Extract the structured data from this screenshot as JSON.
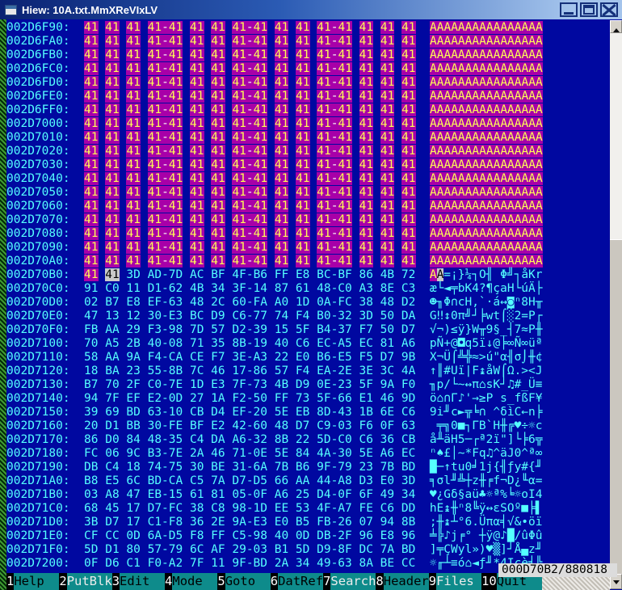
{
  "window": {
    "title": "Hiew: 10A.txt.MmXReVIxLV",
    "icons": {
      "app": "console-window-icon",
      "minimize": "minimize-icon",
      "maximize": "maximize-icon",
      "close": "close-icon"
    }
  },
  "status": {
    "offset_size": "000D70B2/880818"
  },
  "colors": {
    "background": "#0008A0",
    "text_cyan": "#55FFFF",
    "marked_bg": "#A800A8",
    "marked_text": "#FFFF55",
    "cursor_bg": "#C9C9C9",
    "cursor_text": "#000000",
    "fnbar_teal": "#0E8B8B",
    "titlebar_gradient": [
      "#0A2272",
      "#A4C4EC"
    ]
  },
  "hex_view": {
    "rows": [
      {
        "addr": "002D6F90:",
        "hex": "41 41 41 41-41 41 41 41-41 41 41 41-41 41 41 41",
        "ascii": "AAAAAAAAAAAAAAAA",
        "state": "marked"
      },
      {
        "addr": "002D6FA0:",
        "hex": "41 41 41 41-41 41 41 41-41 41 41 41-41 41 41 41",
        "ascii": "AAAAAAAAAAAAAAAA",
        "state": "marked"
      },
      {
        "addr": "002D6FB0:",
        "hex": "41 41 41 41-41 41 41 41-41 41 41 41-41 41 41 41",
        "ascii": "AAAAAAAAAAAAAAAA",
        "state": "marked"
      },
      {
        "addr": "002D6FC0:",
        "hex": "41 41 41 41-41 41 41 41-41 41 41 41-41 41 41 41",
        "ascii": "AAAAAAAAAAAAAAAA",
        "state": "marked"
      },
      {
        "addr": "002D6FD0:",
        "hex": "41 41 41 41-41 41 41 41-41 41 41 41-41 41 41 41",
        "ascii": "AAAAAAAAAAAAAAAA",
        "state": "marked"
      },
      {
        "addr": "002D6FE0:",
        "hex": "41 41 41 41-41 41 41 41-41 41 41 41-41 41 41 41",
        "ascii": "AAAAAAAAAAAAAAAA",
        "state": "marked"
      },
      {
        "addr": "002D6FF0:",
        "hex": "41 41 41 41-41 41 41 41-41 41 41 41-41 41 41 41",
        "ascii": "AAAAAAAAAAAAAAAA",
        "state": "marked"
      },
      {
        "addr": "002D7000:",
        "hex": "41 41 41 41-41 41 41 41-41 41 41 41-41 41 41 41",
        "ascii": "AAAAAAAAAAAAAAAA",
        "state": "marked"
      },
      {
        "addr": "002D7010:",
        "hex": "41 41 41 41-41 41 41 41-41 41 41 41-41 41 41 41",
        "ascii": "AAAAAAAAAAAAAAAA",
        "state": "marked"
      },
      {
        "addr": "002D7020:",
        "hex": "41 41 41 41-41 41 41 41-41 41 41 41-41 41 41 41",
        "ascii": "AAAAAAAAAAAAAAAA",
        "state": "marked"
      },
      {
        "addr": "002D7030:",
        "hex": "41 41 41 41-41 41 41 41-41 41 41 41-41 41 41 41",
        "ascii": "AAAAAAAAAAAAAAAA",
        "state": "marked"
      },
      {
        "addr": "002D7040:",
        "hex": "41 41 41 41-41 41 41 41-41 41 41 41-41 41 41 41",
        "ascii": "AAAAAAAAAAAAAAAA",
        "state": "marked"
      },
      {
        "addr": "002D7050:",
        "hex": "41 41 41 41-41 41 41 41-41 41 41 41-41 41 41 41",
        "ascii": "AAAAAAAAAAAAAAAA",
        "state": "marked"
      },
      {
        "addr": "002D7060:",
        "hex": "41 41 41 41-41 41 41 41-41 41 41 41-41 41 41 41",
        "ascii": "AAAAAAAAAAAAAAAA",
        "state": "marked"
      },
      {
        "addr": "002D7070:",
        "hex": "41 41 41 41-41 41 41 41-41 41 41 41-41 41 41 41",
        "ascii": "AAAAAAAAAAAAAAAA",
        "state": "marked"
      },
      {
        "addr": "002D7080:",
        "hex": "41 41 41 41-41 41 41 41-41 41 41 41-41 41 41 41",
        "ascii": "AAAAAAAAAAAAAAAA",
        "state": "marked"
      },
      {
        "addr": "002D7090:",
        "hex": "41 41 41 41-41 41 41 41-41 41 41 41-41 41 41 41",
        "ascii": "AAAAAAAAAAAAAAAA",
        "state": "marked"
      },
      {
        "addr": "002D70A0:",
        "hex": "41 41 41 41-41 41 41 41-41 41 41 41-41 41 41 41",
        "ascii": "AAAAAAAAAAAAAAAA",
        "state": "marked"
      },
      {
        "addr": "002D70B0:",
        "hex": "41 41 3D AD-7D AC BF 4F-B6 FF E8 BC-BF 86 4B 72",
        "ascii": "AA=¡}¼┐O╢ Φ╝┐åKr",
        "state": "cursor"
      },
      {
        "addr": "002D70C0:",
        "hex": "91 C0 11 D1-62 4B 34 3F-14 87 61 48-C0 A3 8E C3",
        "ascii": "æ└◄╤bK4?¶çaH└úÄ├",
        "state": "normal"
      },
      {
        "addr": "002D70D0:",
        "hex": "02 B7 E8 EF-63 48 2C 60-FA A0 1D 0A-FC 38 48 D2",
        "ascii": "☻╖Φ∩cH,`·á↔◙ⁿ8H╥",
        "state": "normal"
      },
      {
        "addr": "002D70E0:",
        "hex": "47 13 12 30-E3 BC D9 C6-77 74 F4 B0-32 3D 50 DA",
        "ascii": "G‼↕0π╝┘╞wt⌠░2=P┌",
        "state": "normal"
      },
      {
        "addr": "002D70F0:",
        "hex": "FB AA 29 F3-98 7D 57 D2-39 15 5F B4-37 F7 50 D7",
        "ascii": "√¬)≤ÿ}W╥9§_┤7≈P╫",
        "state": "normal"
      },
      {
        "addr": "002D7100:",
        "hex": "70 A5 2B 40-08 71 35 8B-19 40 C6 EC-A5 EC 81 A6",
        "ascii": "pÑ+@◘q5ï↓@╞∞Ñ∞üª",
        "state": "normal"
      },
      {
        "addr": "002D7110:",
        "hex": "58 AA 9A F4-CA CE F7 3E-A3 22 E0 B6-E5 F5 D7 9B",
        "ascii": "X¬Ü⌠╩╬≈>ú\"α╢σ⌡╫¢",
        "state": "normal"
      },
      {
        "addr": "002D7120:",
        "hex": "18 BA 23 55-8B 7C 46 17-86 57 F4 EA-2E 3E 3C 4A",
        "ascii": "↑║#Uï|F↨åW⌠Ω.><J",
        "state": "normal"
      },
      {
        "addr": "002D7130:",
        "hex": "B7 70 2F C0-7E 1D E3 7F-73 4B D9 0E-23 5F 9A F0",
        "ascii": "╖p/└~↔π⌂sK┘♫#_Ü≡",
        "state": "normal"
      },
      {
        "addr": "002D7140:",
        "hex": "94 7F EF E2-0D 27 1A F2-50 FF 73 5F-66 E1 46 9D",
        "ascii": "ö⌂∩Γ♪'→≥P s_fßF¥",
        "state": "normal"
      },
      {
        "addr": "002D7150:",
        "hex": "39 69 BD 63-10 CB D4 EF-20 5E EB 8D-43 1B 6E C6",
        "ascii": "9i╜c►╦╘∩ ^δìC←n╞",
        "state": "normal"
      },
      {
        "addr": "002D7160:",
        "hex": "20 D1 BB 30-FE BF E2 42-60 48 D7 C9-03 F6 0F 63",
        "ascii": " ╤╗0■┐ΓB`H╫╔♥÷☼c",
        "state": "normal"
      },
      {
        "addr": "002D7170:",
        "hex": "86 D0 84 48-35 C4 DA A6-32 8B 22 5D-C0 C6 36 CB",
        "ascii": "å╨äH5─┌ª2ï\"]└╞6╦",
        "state": "normal"
      },
      {
        "addr": "002D7180:",
        "hex": "FC 06 9C B3-7E 2A 46 71-0E 5E 84 4A-30 5E A6 EC",
        "ascii": "ⁿ♠£│~*Fq♫^äJ0^ª∞",
        "state": "normal"
      },
      {
        "addr": "002D7190:",
        "hex": "DB C4 18 74-75 30 BE 31-6A 7B B6 9F-79 23 7B BD",
        "ascii": "█─↑tu0╛1j{╢ƒy#{╜",
        "state": "normal"
      },
      {
        "addr": "002D71A0:",
        "hex": "B8 E5 6C BD-CA C5 7A D7-D5 66 AA 44-A8 D3 E0 3D",
        "ascii": "╕σl╜╩┼z╫╒f¬D¿╙α=",
        "state": "normal"
      },
      {
        "addr": "002D71B0:",
        "hex": "03 A8 47 EB-15 61 81 05-0F A6 25 D4-0F 6F 49 34",
        "ascii": "♥¿Gδ§aü♣☼ª%╘☼oI4",
        "state": "normal"
      },
      {
        "addr": "002D71C0:",
        "hex": "68 45 17 D7-FC 38 C8 98-1D EE 53 4F-A7 FE C6 DD",
        "ascii": "hE↨╫ⁿ8╚ÿ↔εSOº■╞▌",
        "state": "normal"
      },
      {
        "addr": "002D71D0:",
        "hex": "3B D7 17 C1-F8 36 2E 9A-E3 E0 B5 FB-26 07 94 8B",
        "ascii": ";╫↨┴°6.Üπα╡√&•öï",
        "state": "normal"
      },
      {
        "addr": "002D71E0:",
        "hex": "CF CC 0D 6A-D5 F8 FF C5-98 40 0D DB-2F 96 E8 96",
        "ascii": "╧╠♪j╒° ┼ÿ@♪█/ûΦû",
        "state": "normal"
      },
      {
        "addr": "002D71F0:",
        "hex": "5D D1 80 57-79 6C AF 29-03 B1 5D D9-8F DC 7A BD",
        "ascii": "]╤ÇWyl»)♥▒]┘Å▄z╜",
        "state": "normal"
      },
      {
        "addr": "002D7200:",
        "hex": "0F D6 C1 F0-A2 7F 11 9F-BD 2A 34 49-63 8A BE CC",
        "ascii": "☼╓┴≡ó⌂◄ƒ╜*4Icè╛╠",
        "state": "normal"
      }
    ]
  },
  "function_keys": [
    {
      "num": "1",
      "label": "Help  ",
      "bright": false
    },
    {
      "num": "2",
      "label": "PutBlk",
      "bright": true
    },
    {
      "num": "3",
      "label": "Edit  ",
      "bright": false
    },
    {
      "num": "4",
      "label": "Mode  ",
      "bright": false
    },
    {
      "num": "5",
      "label": "Goto  ",
      "bright": false
    },
    {
      "num": "6",
      "label": "DatRef",
      "bright": false
    },
    {
      "num": "7",
      "label": "Search",
      "bright": true
    },
    {
      "num": "8",
      "label": "Header",
      "bright": false
    },
    {
      "num": "9",
      "label": "Files ",
      "bright": true
    },
    {
      "num": "10",
      "label": "Quit  ",
      "bright": false
    }
  ]
}
